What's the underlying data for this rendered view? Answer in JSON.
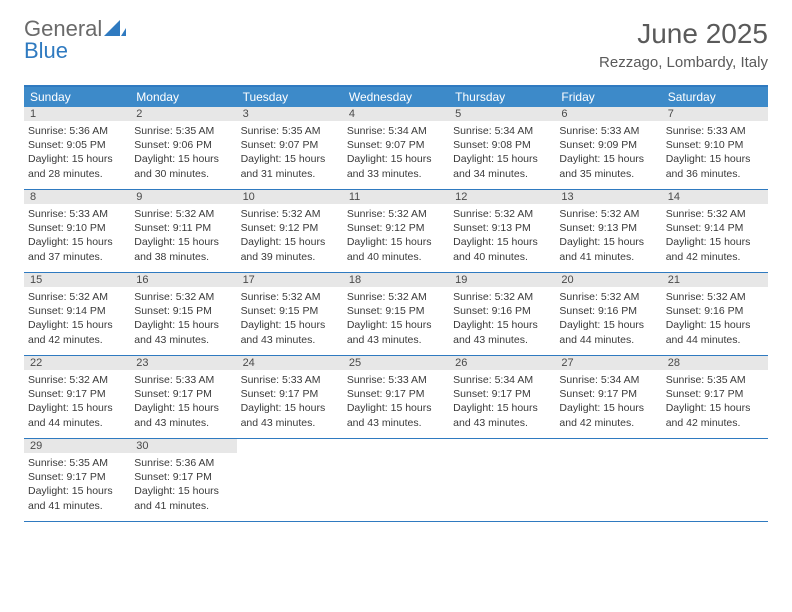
{
  "brand": {
    "word1": "General",
    "word2": "Blue"
  },
  "colors": {
    "accent": "#2f7ac0",
    "header_bg": "#3d8ac9",
    "daynum_bg": "#e7e7e7",
    "text": "#3a3a3a",
    "muted": "#5a5a5a",
    "white": "#ffffff"
  },
  "title": {
    "month": "June 2025",
    "location": "Rezzago, Lombardy, Italy"
  },
  "dow": [
    "Sunday",
    "Monday",
    "Tuesday",
    "Wednesday",
    "Thursday",
    "Friday",
    "Saturday"
  ],
  "weeks": [
    [
      {
        "n": "1",
        "sr": "Sunrise: 5:36 AM",
        "ss": "Sunset: 9:05 PM",
        "d1": "Daylight: 15 hours",
        "d2": "and 28 minutes."
      },
      {
        "n": "2",
        "sr": "Sunrise: 5:35 AM",
        "ss": "Sunset: 9:06 PM",
        "d1": "Daylight: 15 hours",
        "d2": "and 30 minutes."
      },
      {
        "n": "3",
        "sr": "Sunrise: 5:35 AM",
        "ss": "Sunset: 9:07 PM",
        "d1": "Daylight: 15 hours",
        "d2": "and 31 minutes."
      },
      {
        "n": "4",
        "sr": "Sunrise: 5:34 AM",
        "ss": "Sunset: 9:07 PM",
        "d1": "Daylight: 15 hours",
        "d2": "and 33 minutes."
      },
      {
        "n": "5",
        "sr": "Sunrise: 5:34 AM",
        "ss": "Sunset: 9:08 PM",
        "d1": "Daylight: 15 hours",
        "d2": "and 34 minutes."
      },
      {
        "n": "6",
        "sr": "Sunrise: 5:33 AM",
        "ss": "Sunset: 9:09 PM",
        "d1": "Daylight: 15 hours",
        "d2": "and 35 minutes."
      },
      {
        "n": "7",
        "sr": "Sunrise: 5:33 AM",
        "ss": "Sunset: 9:10 PM",
        "d1": "Daylight: 15 hours",
        "d2": "and 36 minutes."
      }
    ],
    [
      {
        "n": "8",
        "sr": "Sunrise: 5:33 AM",
        "ss": "Sunset: 9:10 PM",
        "d1": "Daylight: 15 hours",
        "d2": "and 37 minutes."
      },
      {
        "n": "9",
        "sr": "Sunrise: 5:32 AM",
        "ss": "Sunset: 9:11 PM",
        "d1": "Daylight: 15 hours",
        "d2": "and 38 minutes."
      },
      {
        "n": "10",
        "sr": "Sunrise: 5:32 AM",
        "ss": "Sunset: 9:12 PM",
        "d1": "Daylight: 15 hours",
        "d2": "and 39 minutes."
      },
      {
        "n": "11",
        "sr": "Sunrise: 5:32 AM",
        "ss": "Sunset: 9:12 PM",
        "d1": "Daylight: 15 hours",
        "d2": "and 40 minutes."
      },
      {
        "n": "12",
        "sr": "Sunrise: 5:32 AM",
        "ss": "Sunset: 9:13 PM",
        "d1": "Daylight: 15 hours",
        "d2": "and 40 minutes."
      },
      {
        "n": "13",
        "sr": "Sunrise: 5:32 AM",
        "ss": "Sunset: 9:13 PM",
        "d1": "Daylight: 15 hours",
        "d2": "and 41 minutes."
      },
      {
        "n": "14",
        "sr": "Sunrise: 5:32 AM",
        "ss": "Sunset: 9:14 PM",
        "d1": "Daylight: 15 hours",
        "d2": "and 42 minutes."
      }
    ],
    [
      {
        "n": "15",
        "sr": "Sunrise: 5:32 AM",
        "ss": "Sunset: 9:14 PM",
        "d1": "Daylight: 15 hours",
        "d2": "and 42 minutes."
      },
      {
        "n": "16",
        "sr": "Sunrise: 5:32 AM",
        "ss": "Sunset: 9:15 PM",
        "d1": "Daylight: 15 hours",
        "d2": "and 43 minutes."
      },
      {
        "n": "17",
        "sr": "Sunrise: 5:32 AM",
        "ss": "Sunset: 9:15 PM",
        "d1": "Daylight: 15 hours",
        "d2": "and 43 minutes."
      },
      {
        "n": "18",
        "sr": "Sunrise: 5:32 AM",
        "ss": "Sunset: 9:15 PM",
        "d1": "Daylight: 15 hours",
        "d2": "and 43 minutes."
      },
      {
        "n": "19",
        "sr": "Sunrise: 5:32 AM",
        "ss": "Sunset: 9:16 PM",
        "d1": "Daylight: 15 hours",
        "d2": "and 43 minutes."
      },
      {
        "n": "20",
        "sr": "Sunrise: 5:32 AM",
        "ss": "Sunset: 9:16 PM",
        "d1": "Daylight: 15 hours",
        "d2": "and 44 minutes."
      },
      {
        "n": "21",
        "sr": "Sunrise: 5:32 AM",
        "ss": "Sunset: 9:16 PM",
        "d1": "Daylight: 15 hours",
        "d2": "and 44 minutes."
      }
    ],
    [
      {
        "n": "22",
        "sr": "Sunrise: 5:32 AM",
        "ss": "Sunset: 9:17 PM",
        "d1": "Daylight: 15 hours",
        "d2": "and 44 minutes."
      },
      {
        "n": "23",
        "sr": "Sunrise: 5:33 AM",
        "ss": "Sunset: 9:17 PM",
        "d1": "Daylight: 15 hours",
        "d2": "and 43 minutes."
      },
      {
        "n": "24",
        "sr": "Sunrise: 5:33 AM",
        "ss": "Sunset: 9:17 PM",
        "d1": "Daylight: 15 hours",
        "d2": "and 43 minutes."
      },
      {
        "n": "25",
        "sr": "Sunrise: 5:33 AM",
        "ss": "Sunset: 9:17 PM",
        "d1": "Daylight: 15 hours",
        "d2": "and 43 minutes."
      },
      {
        "n": "26",
        "sr": "Sunrise: 5:34 AM",
        "ss": "Sunset: 9:17 PM",
        "d1": "Daylight: 15 hours",
        "d2": "and 43 minutes."
      },
      {
        "n": "27",
        "sr": "Sunrise: 5:34 AM",
        "ss": "Sunset: 9:17 PM",
        "d1": "Daylight: 15 hours",
        "d2": "and 42 minutes."
      },
      {
        "n": "28",
        "sr": "Sunrise: 5:35 AM",
        "ss": "Sunset: 9:17 PM",
        "d1": "Daylight: 15 hours",
        "d2": "and 42 minutes."
      }
    ],
    [
      {
        "n": "29",
        "sr": "Sunrise: 5:35 AM",
        "ss": "Sunset: 9:17 PM",
        "d1": "Daylight: 15 hours",
        "d2": "and 41 minutes."
      },
      {
        "n": "30",
        "sr": "Sunrise: 5:36 AM",
        "ss": "Sunset: 9:17 PM",
        "d1": "Daylight: 15 hours",
        "d2": "and 41 minutes."
      },
      null,
      null,
      null,
      null,
      null
    ]
  ]
}
